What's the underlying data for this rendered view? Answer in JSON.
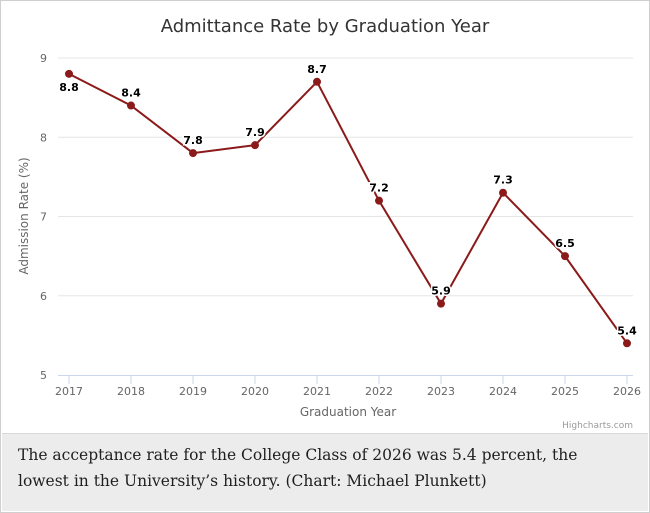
{
  "chart_data": {
    "type": "line",
    "title": "Admittance Rate by Graduation Year",
    "xlabel": "Graduation Year",
    "ylabel": "Admission Rate (%)",
    "categories": [
      "2017",
      "2018",
      "2019",
      "2020",
      "2021",
      "2022",
      "2023",
      "2024",
      "2025",
      "2026"
    ],
    "series": [
      {
        "name": "Admission Rate",
        "values": [
          8.8,
          8.4,
          7.8,
          7.9,
          8.7,
          7.2,
          5.9,
          7.3,
          6.5,
          5.4
        ]
      }
    ],
    "data_labels": [
      "8.8",
      "8.4",
      "7.8",
      "7.9",
      "8.7",
      "7.2",
      "5.9",
      "7.3",
      "6.5",
      "5.4"
    ],
    "ylim": [
      5,
      9
    ],
    "yticks": [
      "5",
      "6",
      "7",
      "8",
      "9"
    ],
    "grid": true,
    "line_color": "#8b1a1a",
    "credit": "Highcharts.com"
  },
  "caption": "The acceptance rate for the College Class of 2026 was 5.4 percent, the lowest in the University’s history. (Chart: Michael Plunkett)"
}
